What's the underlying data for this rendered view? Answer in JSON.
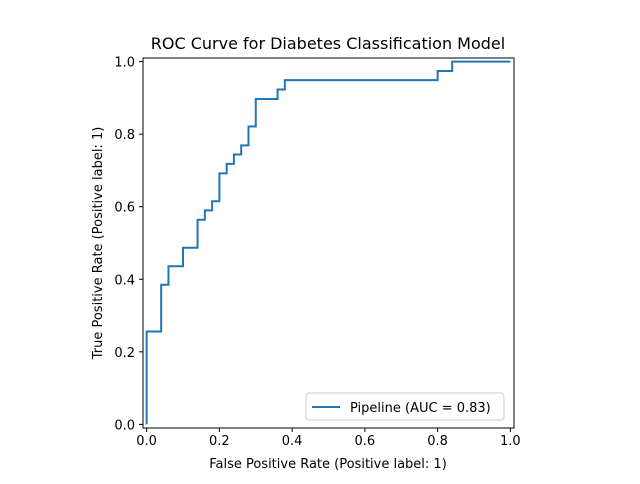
{
  "chart_data": {
    "type": "line",
    "title": "ROC Curve for Diabetes Classification Model",
    "xlabel": "False Positive Rate (Positive label: 1)",
    "ylabel": "True Positive Rate (Positive label: 1)",
    "xlim": [
      -0.01,
      1.01
    ],
    "ylim": [
      -0.01,
      1.01
    ],
    "xticks": [
      0.0,
      0.2,
      0.4,
      0.6,
      0.8,
      1.0
    ],
    "xtick_labels": [
      "0.0",
      "0.2",
      "0.4",
      "0.6",
      "0.8",
      "1.0"
    ],
    "yticks": [
      0.0,
      0.2,
      0.4,
      0.6,
      0.8,
      1.0
    ],
    "ytick_labels": [
      "0.0",
      "0.2",
      "0.4",
      "0.6",
      "0.8",
      "1.0"
    ],
    "grid": false,
    "legend_position": "lower right",
    "series": [
      {
        "name": "Pipeline (AUC = 0.83)",
        "color": "#1f77b4",
        "drawstyle": "steps",
        "x": [
          0.0,
          0.0,
          0.04,
          0.04,
          0.06,
          0.06,
          0.1,
          0.1,
          0.14,
          0.14,
          0.16,
          0.16,
          0.18,
          0.18,
          0.2,
          0.2,
          0.22,
          0.22,
          0.24,
          0.24,
          0.26,
          0.26,
          0.28,
          0.28,
          0.3,
          0.3,
          0.36,
          0.36,
          0.38,
          0.38,
          0.8,
          0.8,
          0.84,
          0.84,
          1.0
        ],
        "y": [
          0.0,
          0.256,
          0.256,
          0.385,
          0.385,
          0.436,
          0.436,
          0.487,
          0.487,
          0.564,
          0.564,
          0.59,
          0.59,
          0.615,
          0.615,
          0.692,
          0.692,
          0.718,
          0.718,
          0.744,
          0.744,
          0.769,
          0.769,
          0.821,
          0.821,
          0.897,
          0.897,
          0.923,
          0.923,
          0.949,
          0.949,
          0.974,
          0.974,
          1.0,
          1.0
        ]
      }
    ]
  }
}
